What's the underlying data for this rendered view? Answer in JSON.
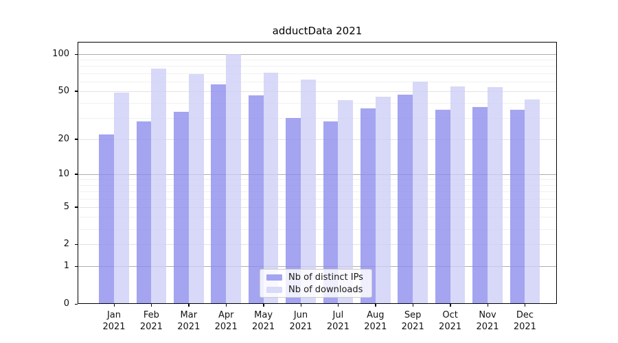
{
  "title": "adductData 2021",
  "chart_data": {
    "type": "bar",
    "title": "adductData 2021",
    "scale": "log10(value+1)",
    "ylim": [
      0,
      100
    ],
    "grid": true,
    "legend_position": "lower center",
    "categories": [
      "Jan",
      "Feb",
      "Mar",
      "Apr",
      "May",
      "Jun",
      "Jul",
      "Aug",
      "Sep",
      "Oct",
      "Nov",
      "Dec"
    ],
    "category_year": "2021",
    "yticks": [
      0,
      1,
      2,
      5,
      10,
      20,
      50,
      100
    ],
    "minor_gridlines": [
      3,
      4,
      6,
      7,
      8,
      9,
      30,
      40,
      60,
      70,
      80,
      90
    ],
    "power_gridlines": [
      1,
      10,
      100
    ],
    "series": [
      {
        "name": "Nb of distinct IPs",
        "color": "rgba(138,138,237,0.78)",
        "legend_color": "#a4a4f1",
        "values": [
          22,
          28,
          34,
          57,
          46,
          30,
          28,
          36,
          47,
          35,
          37,
          35
        ]
      },
      {
        "name": "Nb of downloads",
        "color": "rgba(205,205,246,0.78)",
        "legend_color": "#d9d9f8",
        "values": [
          49,
          76,
          69,
          100,
          71,
          62,
          42,
          45,
          60,
          55,
          54,
          43
        ]
      }
    ]
  }
}
